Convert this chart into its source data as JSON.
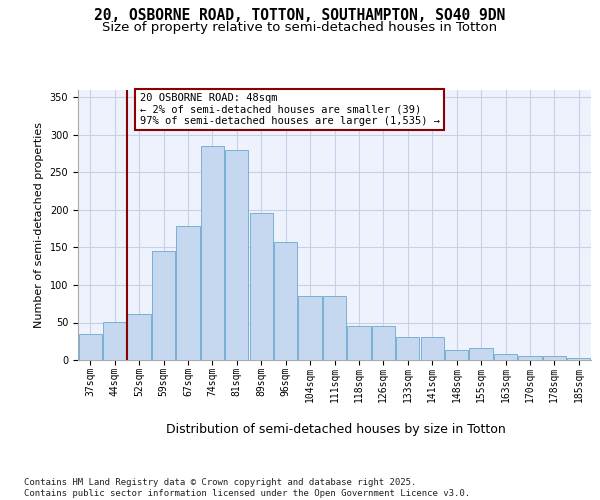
{
  "title_line1": "20, OSBORNE ROAD, TOTTON, SOUTHAMPTON, SO40 9DN",
  "title_line2": "Size of property relative to semi-detached houses in Totton",
  "xlabel": "Distribution of semi-detached houses by size in Totton",
  "ylabel": "Number of semi-detached properties",
  "categories": [
    "37sqm",
    "44sqm",
    "52sqm",
    "59sqm",
    "67sqm",
    "74sqm",
    "81sqm",
    "89sqm",
    "96sqm",
    "104sqm",
    "111sqm",
    "118sqm",
    "126sqm",
    "133sqm",
    "141sqm",
    "148sqm",
    "155sqm",
    "163sqm",
    "170sqm",
    "178sqm",
    "185sqm"
  ],
  "values": [
    35,
    51,
    61,
    145,
    178,
    285,
    280,
    196,
    157,
    85,
    85,
    46,
    46,
    31,
    31,
    14,
    16,
    8,
    5,
    6,
    3
  ],
  "bar_color": "#c5d8f0",
  "bar_edge_color": "#7aafd4",
  "vline_color": "#8b0000",
  "annotation_text": "20 OSBORNE ROAD: 48sqm\n← 2% of semi-detached houses are smaller (39)\n97% of semi-detached houses are larger (1,535) →",
  "annotation_box_color": "white",
  "annotation_box_edge_color": "#8b0000",
  "footnote": "Contains HM Land Registry data © Crown copyright and database right 2025.\nContains public sector information licensed under the Open Government Licence v3.0.",
  "ylim": [
    0,
    360
  ],
  "background_color": "#eef2fc",
  "grid_color": "#c8d0e8",
  "title_fontsize": 10.5,
  "subtitle_fontsize": 9.5,
  "footnote_fontsize": 6.5,
  "ylabel_fontsize": 8,
  "xlabel_fontsize": 9,
  "tick_fontsize": 7,
  "ann_fontsize": 7.5
}
